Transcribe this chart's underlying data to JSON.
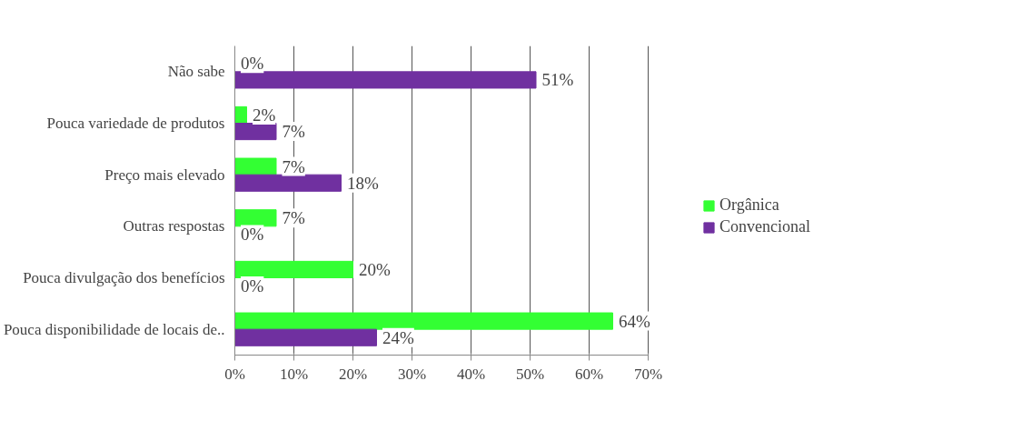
{
  "chart_data": {
    "type": "bar",
    "orientation": "horizontal",
    "categories": [
      "Não sabe",
      "Pouca variedade de produtos",
      "Preço mais elevado",
      "Outras respostas",
      "Pouca divulgação dos benefícios",
      "Pouca disponibilidade de locais de.."
    ],
    "series": [
      {
        "name": "Orgânica",
        "color": "#33ff33",
        "values": [
          0,
          2,
          7,
          7,
          20,
          64
        ],
        "value_labels": [
          "0%",
          "2%",
          "7%",
          "7%",
          "20%",
          "64%"
        ]
      },
      {
        "name": "Convencional",
        "color": "#7030a0",
        "values": [
          51,
          7,
          18,
          0,
          0,
          24
        ],
        "value_labels": [
          "51%",
          "7%",
          "18%",
          "0%",
          "0%",
          "24%"
        ]
      }
    ],
    "xlim": [
      0,
      70
    ],
    "xticks": [
      {
        "value": 0,
        "label": "0%"
      },
      {
        "value": 10,
        "label": "10%"
      },
      {
        "value": 20,
        "label": "20%"
      },
      {
        "value": 30,
        "label": "30%"
      },
      {
        "value": 40,
        "label": "40%"
      },
      {
        "value": 50,
        "label": "50%"
      },
      {
        "value": 60,
        "label": "60%"
      },
      {
        "value": 70,
        "label": "70%"
      }
    ],
    "grid": "x",
    "legend": "right"
  }
}
